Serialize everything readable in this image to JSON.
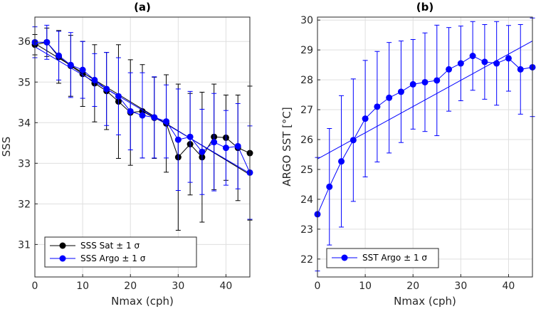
{
  "chart_data": [
    {
      "type": "line",
      "title": "(a)",
      "xlabel": "Nmax (cph)",
      "ylabel": "SSS",
      "xlim": [
        0,
        45
      ],
      "ylim": [
        30.2,
        36.6
      ],
      "xticks": [
        0,
        10,
        20,
        30,
        40
      ],
      "yticks": [
        31,
        32,
        33,
        34,
        35,
        36
      ],
      "grid": true,
      "legend_position": "bottom-left",
      "series": [
        {
          "name": "SSS Sat ± 1 σ",
          "color": "#000000",
          "x": [
            0,
            2.5,
            5,
            7.5,
            10,
            12.5,
            15,
            17.5,
            20,
            22.5,
            25,
            27.5,
            30,
            32.5,
            35,
            37.5,
            40,
            42.5,
            45
          ],
          "y": [
            35.92,
            35.98,
            35.62,
            35.4,
            35.2,
            34.97,
            34.78,
            34.52,
            34.25,
            34.28,
            34.12,
            33.98,
            33.15,
            33.47,
            33.15,
            33.65,
            33.63,
            33.38,
            33.25
          ],
          "err": [
            0.25,
            0.35,
            0.65,
            0.75,
            0.8,
            0.95,
            0.95,
            1.4,
            1.3,
            1.15,
            1.0,
            1.2,
            1.8,
            1.25,
            1.6,
            1.3,
            1.05,
            1.3,
            1.65
          ],
          "fit": [
            35.95,
            32.72
          ]
        },
        {
          "name": "SSS Argo ± 1 σ",
          "color": "#0000ff",
          "x": [
            0,
            2.5,
            5,
            7.5,
            10,
            12.5,
            15,
            17.5,
            20,
            22.5,
            25,
            27.5,
            30,
            32.5,
            35,
            37.5,
            40,
            42.5,
            45
          ],
          "y": [
            35.98,
            35.98,
            35.65,
            35.42,
            35.3,
            35.05,
            34.83,
            34.65,
            34.28,
            34.18,
            34.13,
            34.03,
            33.58,
            33.65,
            33.28,
            33.52,
            33.38,
            33.42,
            32.77
          ],
          "err": [
            0.38,
            0.42,
            0.6,
            0.8,
            0.7,
            0.65,
            0.9,
            0.95,
            0.95,
            1.05,
            1.0,
            0.9,
            1.25,
            1.12,
            1.05,
            1.2,
            0.92,
            1.05,
            1.15
          ],
          "fit": [
            35.87,
            32.75
          ]
        }
      ]
    },
    {
      "type": "line",
      "title": "(b)",
      "xlabel": "Nmax (cph)",
      "ylabel": "ARGO SST [°C]",
      "xlim": [
        0,
        45
      ],
      "ylim": [
        21.4,
        30.1
      ],
      "xticks": [
        0,
        10,
        20,
        30,
        40
      ],
      "yticks": [
        22,
        23,
        24,
        25,
        26,
        27,
        28,
        29,
        30
      ],
      "grid": true,
      "legend_position": "bottom-left",
      "series": [
        {
          "name": "SST Argo ± 1 σ",
          "color": "#0000ff",
          "x": [
            0,
            2.5,
            5,
            7.5,
            10,
            12.5,
            15,
            17.5,
            20,
            22.5,
            25,
            27.5,
            30,
            32.5,
            35,
            37.5,
            40,
            42.5,
            45
          ],
          "y": [
            23.5,
            24.42,
            25.27,
            25.98,
            26.7,
            27.1,
            27.4,
            27.6,
            27.85,
            27.92,
            27.98,
            28.35,
            28.55,
            28.8,
            28.6,
            28.55,
            28.72,
            28.35,
            28.42
          ],
          "err": [
            1.9,
            1.95,
            2.2,
            2.05,
            1.95,
            1.85,
            1.85,
            1.7,
            1.5,
            1.65,
            1.85,
            1.4,
            1.25,
            1.15,
            1.25,
            1.4,
            1.1,
            1.5,
            1.65
          ],
          "fit": [
            25.35,
            29.3
          ]
        }
      ]
    }
  ]
}
